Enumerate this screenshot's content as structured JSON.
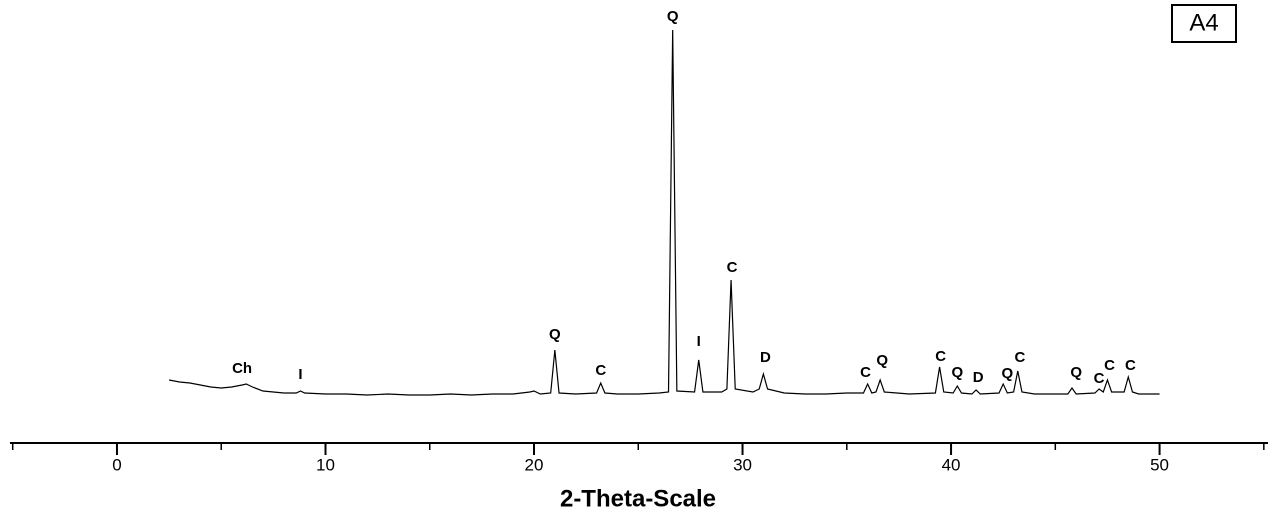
{
  "chart_data": {
    "type": "line",
    "panel_label": "A4",
    "xlabel": "2-Theta-Scale",
    "x": [
      2.5,
      3,
      3.5,
      4,
      4.5,
      5,
      5.5,
      6,
      6.2,
      6.5,
      7,
      7.5,
      8,
      8.6,
      8.8,
      9,
      10,
      11,
      12,
      13,
      14,
      15,
      16,
      17,
      18,
      19,
      19.8,
      20,
      20.3,
      20.8,
      21,
      21.2,
      22,
      23,
      23.2,
      23.4,
      24,
      25,
      26,
      26.45,
      26.65,
      26.85,
      27.7,
      27.9,
      28.1,
      29,
      29.25,
      29.45,
      29.65,
      30.5,
      30.8,
      31,
      31.2,
      32,
      33,
      34,
      35,
      35.8,
      36,
      36.2,
      36.4,
      36.6,
      36.8,
      38,
      39.25,
      39.45,
      39.65,
      40.1,
      40.3,
      40.5,
      41,
      41.2,
      41.4,
      42.3,
      42.5,
      42.7,
      43,
      43.2,
      43.4,
      44,
      45,
      45.6,
      45.8,
      46,
      46.9,
      47.1,
      47.3,
      47.5,
      47.7,
      48.3,
      48.5,
      48.7,
      49,
      50
    ],
    "values": [
      17,
      15,
      14,
      12,
      10,
      9,
      10,
      12,
      13,
      10,
      6,
      5,
      4,
      4,
      6,
      4,
      3,
      3,
      2,
      3,
      2,
      2,
      3,
      2,
      3,
      3,
      5,
      6,
      3,
      4,
      47,
      4,
      3,
      4,
      14,
      4,
      3,
      3,
      4,
      5,
      367,
      6,
      5,
      37,
      5,
      5,
      8,
      117,
      8,
      5,
      8,
      23,
      8,
      4,
      3,
      3,
      4,
      4,
      13,
      4,
      5,
      17,
      5,
      3,
      4,
      30,
      5,
      4,
      11,
      4,
      3,
      7,
      3,
      4,
      13,
      4,
      5,
      26,
      5,
      3,
      3,
      3,
      9,
      3,
      4,
      8,
      5,
      17,
      5,
      5,
      20,
      5,
      3,
      3
    ],
    "color": "#000000",
    "xlim": [
      -5.13,
      55.2
    ],
    "ylim": [
      -46,
      397
    ],
    "xticks": [
      0,
      10,
      20,
      30,
      40,
      50
    ],
    "xminorticks": [
      -5,
      5,
      15,
      25,
      35,
      45,
      55
    ],
    "annotations": [
      {
        "text": "Ch",
        "x": 6.0,
        "y": 28
      },
      {
        "text": "I",
        "x": 8.8,
        "y": 22
      },
      {
        "text": "Q",
        "x": 21.0,
        "y": 62
      },
      {
        "text": "C",
        "x": 23.2,
        "y": 26
      },
      {
        "text": "Q",
        "x": 26.65,
        "y": 380
      },
      {
        "text": "I",
        "x": 27.9,
        "y": 55
      },
      {
        "text": "C",
        "x": 29.5,
        "y": 129
      },
      {
        "text": "D",
        "x": 31.1,
        "y": 39
      },
      {
        "text": "C",
        "x": 35.9,
        "y": 24
      },
      {
        "text": "Q",
        "x": 36.7,
        "y": 36
      },
      {
        "text": "C",
        "x": 39.5,
        "y": 40
      },
      {
        "text": "Q",
        "x": 40.3,
        "y": 24
      },
      {
        "text": "D",
        "x": 41.3,
        "y": 19
      },
      {
        "text": "Q",
        "x": 42.7,
        "y": 23
      },
      {
        "text": "C",
        "x": 43.3,
        "y": 39
      },
      {
        "text": "Q",
        "x": 46.0,
        "y": 24
      },
      {
        "text": "C",
        "x": 47.1,
        "y": 18
      },
      {
        "text": "C",
        "x": 47.6,
        "y": 31
      },
      {
        "text": "C",
        "x": 48.6,
        "y": 31
      }
    ]
  }
}
